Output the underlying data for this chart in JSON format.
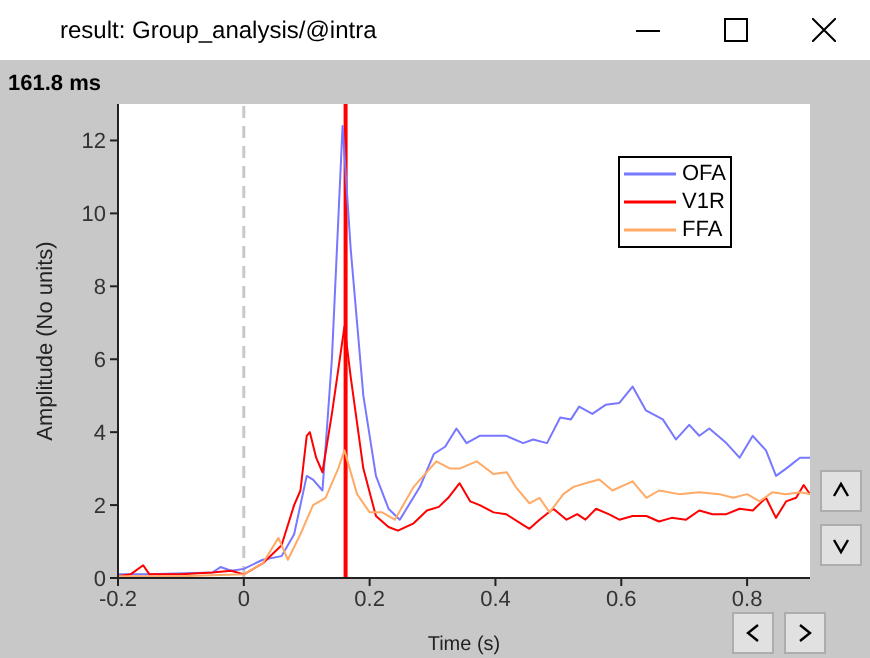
{
  "chart_data": {
    "type": "line",
    "title": "result: Group_analysis/@intra",
    "xlabel": "Time (s)",
    "ylabel": "Amplitude (No units)",
    "xlim": [
      -0.2,
      0.9
    ],
    "xticks": [
      -0.2,
      0,
      0.2,
      0.4,
      0.6,
      0.8
    ],
    "ylim": [
      0,
      13
    ],
    "yticks": [
      0,
      2,
      4,
      6,
      8,
      10,
      12
    ],
    "annotations": [
      "161.8 ms"
    ],
    "legend": "top right",
    "marker": "none",
    "line_style": "solid",
    "ref_lines": [
      {
        "axis": "x",
        "value": 0,
        "color": "#c8c8c8",
        "line_style": "dashed"
      },
      {
        "axis": "x",
        "value": 0.1618,
        "color": "#ff0000",
        "line_style": "solid"
      }
    ],
    "series": [
      {
        "name": "OFA",
        "color": "#7777ff",
        "x": [
          -0.2,
          -0.15,
          -0.05,
          -0.037,
          -0.02,
          0,
          0.03,
          0.06,
          0.08,
          0.1,
          0.11,
          0.125,
          0.14,
          0.157,
          0.17,
          0.19,
          0.21,
          0.23,
          0.248,
          0.28,
          0.302,
          0.32,
          0.338,
          0.354,
          0.375,
          0.417,
          0.444,
          0.46,
          0.482,
          0.503,
          0.52,
          0.533,
          0.554,
          0.575,
          0.597,
          0.618,
          0.639,
          0.666,
          0.687,
          0.708,
          0.724,
          0.74,
          0.767,
          0.788,
          0.809,
          0.83,
          0.846,
          0.862,
          0.884,
          0.9
        ],
        "values": [
          0.1,
          0.1,
          0.15,
          0.3,
          0.2,
          0.25,
          0.5,
          0.6,
          1.2,
          2.8,
          2.7,
          2.4,
          6,
          12.4,
          9,
          5,
          2.8,
          1.9,
          1.6,
          2.5,
          3.4,
          3.6,
          4.1,
          3.7,
          3.9,
          3.9,
          3.7,
          3.8,
          3.7,
          4.4,
          4.35,
          4.7,
          4.5,
          4.75,
          4.8,
          5.25,
          4.6,
          4.35,
          3.8,
          4.2,
          3.9,
          4.1,
          3.7,
          3.3,
          3.9,
          3.5,
          2.8,
          3.0,
          3.3,
          3.3
        ]
      },
      {
        "name": "V1R",
        "color": "#ff0000",
        "x": [
          -0.2,
          -0.18,
          -0.16,
          -0.15,
          -0.1,
          -0.05,
          -0.02,
          0,
          0.03,
          0.06,
          0.08,
          0.09,
          0.1,
          0.105,
          0.115,
          0.125,
          0.14,
          0.16,
          0.17,
          0.19,
          0.21,
          0.23,
          0.245,
          0.27,
          0.291,
          0.31,
          0.325,
          0.343,
          0.36,
          0.375,
          0.397,
          0.417,
          0.44,
          0.454,
          0.47,
          0.492,
          0.513,
          0.53,
          0.543,
          0.56,
          0.58,
          0.597,
          0.618,
          0.64,
          0.66,
          0.68,
          0.703,
          0.724,
          0.745,
          0.767,
          0.788,
          0.809,
          0.83,
          0.846,
          0.862,
          0.878,
          0.89,
          0.9
        ],
        "values": [
          0.05,
          0.1,
          0.35,
          0.1,
          0.1,
          0.15,
          0.2,
          0.1,
          0.4,
          0.9,
          2.0,
          2.4,
          3.9,
          4.0,
          3.3,
          2.9,
          4.5,
          6.9,
          5.5,
          3.0,
          1.7,
          1.4,
          1.3,
          1.5,
          1.85,
          1.95,
          2.2,
          2.6,
          2.1,
          2.0,
          1.8,
          1.75,
          1.5,
          1.35,
          1.6,
          1.9,
          1.6,
          1.75,
          1.6,
          1.9,
          1.75,
          1.6,
          1.7,
          1.7,
          1.55,
          1.65,
          1.6,
          1.85,
          1.75,
          1.75,
          1.9,
          1.85,
          2.2,
          1.65,
          2.1,
          2.2,
          2.55,
          2.3
        ]
      },
      {
        "name": "FFA",
        "color": "#ffaa66",
        "x": [
          -0.2,
          -0.1,
          0,
          0.03,
          0.055,
          0.07,
          0.09,
          0.11,
          0.13,
          0.15,
          0.16,
          0.18,
          0.2,
          0.22,
          0.24,
          0.27,
          0.306,
          0.328,
          0.343,
          0.37,
          0.397,
          0.418,
          0.432,
          0.454,
          0.47,
          0.486,
          0.508,
          0.524,
          0.543,
          0.565,
          0.586,
          0.618,
          0.64,
          0.66,
          0.692,
          0.724,
          0.756,
          0.778,
          0.8,
          0.82,
          0.84,
          0.862,
          0.884,
          0.9
        ],
        "values": [
          0.05,
          0.05,
          0.1,
          0.4,
          1.1,
          0.5,
          1.2,
          2.0,
          2.2,
          3.0,
          3.5,
          2.3,
          1.8,
          1.8,
          1.6,
          2.5,
          3.2,
          3.0,
          3.0,
          3.2,
          2.85,
          2.9,
          2.5,
          2.05,
          2.2,
          1.8,
          2.3,
          2.5,
          2.6,
          2.7,
          2.4,
          2.65,
          2.2,
          2.4,
          2.3,
          2.35,
          2.3,
          2.2,
          2.3,
          2.1,
          2.35,
          2.3,
          2.35,
          2.3
        ]
      }
    ]
  }
}
